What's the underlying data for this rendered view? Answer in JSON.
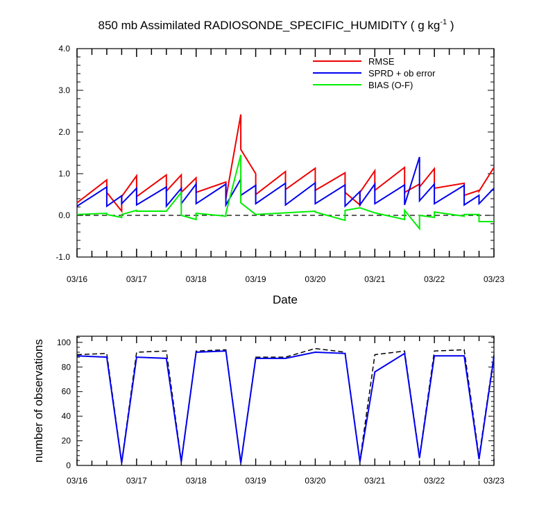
{
  "colors": {
    "rmse": "#ee0000",
    "spread": "#0000ee",
    "bias": "#00ee00",
    "obs_total": "#000000",
    "obs_assim": "#0000ee",
    "zero_line": "#000000"
  },
  "chart_data": [
    {
      "type": "line",
      "title": "850 mb Assimilated RADIOSONDE_SPECIFIC_HUMIDITY ( g kg",
      "title_unit_exp": "-1",
      "title_suffix": " )",
      "xlabel": "Date",
      "ylabel": "",
      "x_ticks": [
        "03/16",
        "03/17",
        "03/18",
        "03/19",
        "03/20",
        "03/21",
        "03/22",
        "03/23"
      ],
      "xlim": [
        0,
        7
      ],
      "ylim": [
        -1.0,
        4.0
      ],
      "y_ticks": [
        "-1.0",
        "0.0",
        "1.0",
        "2.0",
        "3.0",
        "4.0"
      ],
      "y_tick_values": [
        -1.0,
        0.0,
        1.0,
        2.0,
        3.0,
        4.0
      ],
      "legend": "top-right",
      "reference_line": 0.0,
      "series": [
        {
          "name": "RMSE",
          "x": [
            0.0,
            0.5,
            0.5,
            0.75,
            0.75,
            1.0,
            1.0,
            1.5,
            1.5,
            1.75,
            1.75,
            2.0,
            2.0,
            2.5,
            2.5,
            2.75,
            2.75,
            3.0,
            3.0,
            3.5,
            3.5,
            4.0,
            4.0,
            4.5,
            4.5,
            4.75,
            4.75,
            5.0,
            5.0,
            5.5,
            5.5,
            5.75,
            5.75,
            6.0,
            6.0,
            6.5,
            6.5,
            6.75,
            6.75,
            7.0
          ],
          "values": [
            0.3,
            0.85,
            0.55,
            0.1,
            0.45,
            0.95,
            0.45,
            0.97,
            0.58,
            0.97,
            0.55,
            0.9,
            0.55,
            0.8,
            0.4,
            2.42,
            1.58,
            1.0,
            0.5,
            1.05,
            0.62,
            1.13,
            0.6,
            1.02,
            0.55,
            0.25,
            0.55,
            1.07,
            0.6,
            1.15,
            0.55,
            0.75,
            0.68,
            1.12,
            0.65,
            0.77,
            0.48,
            0.6,
            0.58,
            1.15
          ]
        },
        {
          "name": "SPRD + ob error",
          "x": [
            0.0,
            0.5,
            0.5,
            0.75,
            0.75,
            1.0,
            1.0,
            1.5,
            1.5,
            1.75,
            1.75,
            2.0,
            2.0,
            2.5,
            2.5,
            2.75,
            2.75,
            3.0,
            3.0,
            3.5,
            3.5,
            4.0,
            4.0,
            4.5,
            4.5,
            4.75,
            4.75,
            5.0,
            5.0,
            5.5,
            5.5,
            5.75,
            5.75,
            6.0,
            6.0,
            6.5,
            6.5,
            6.75,
            6.75,
            7.0
          ],
          "values": [
            0.22,
            0.68,
            0.22,
            0.47,
            0.28,
            0.65,
            0.25,
            0.68,
            0.22,
            0.65,
            0.28,
            0.75,
            0.28,
            0.75,
            0.25,
            0.87,
            0.48,
            0.72,
            0.28,
            0.77,
            0.25,
            0.78,
            0.28,
            0.73,
            0.22,
            0.57,
            0.25,
            0.75,
            0.28,
            0.73,
            0.25,
            1.4,
            0.35,
            0.75,
            0.28,
            0.72,
            0.25,
            0.48,
            0.28,
            0.65
          ]
        },
        {
          "name": "BIAS (O-F)",
          "x": [
            0.0,
            0.5,
            0.5,
            0.75,
            0.75,
            1.0,
            1.0,
            1.5,
            1.5,
            1.75,
            1.75,
            2.0,
            2.0,
            2.5,
            2.5,
            2.75,
            2.75,
            3.0,
            3.0,
            3.5,
            3.5,
            4.0,
            4.0,
            4.5,
            4.5,
            4.75,
            4.75,
            5.0,
            5.0,
            5.5,
            5.5,
            5.75,
            5.75,
            6.0,
            6.0,
            6.5,
            6.5,
            6.75,
            6.75,
            7.0
          ],
          "values": [
            0.02,
            0.05,
            0.02,
            -0.05,
            0.02,
            0.12,
            0.1,
            0.1,
            0.1,
            0.55,
            0.0,
            -0.1,
            0.05,
            -0.02,
            0.05,
            1.45,
            0.3,
            0.02,
            0.02,
            0.06,
            0.06,
            0.1,
            0.08,
            -0.12,
            0.12,
            0.18,
            0.18,
            0.06,
            0.06,
            -0.1,
            0.12,
            -0.32,
            0.0,
            -0.05,
            0.08,
            -0.02,
            0.02,
            0.02,
            -0.15,
            -0.15
          ]
        }
      ]
    },
    {
      "type": "line",
      "title": "",
      "xlabel": "",
      "ylabel": "number of observations",
      "x_ticks": [
        "03/16",
        "03/17",
        "03/18",
        "03/19",
        "03/20",
        "03/21",
        "03/22",
        "03/23"
      ],
      "xlim": [
        0,
        7
      ],
      "ylim": [
        0,
        105
      ],
      "y_ticks": [
        "0",
        "20",
        "40",
        "60",
        "80",
        "100"
      ],
      "y_tick_values": [
        0,
        20,
        40,
        60,
        80,
        100
      ],
      "series": [
        {
          "style": "dashed",
          "x": [
            0.0,
            0.5,
            0.75,
            1.0,
            1.5,
            1.75,
            2.0,
            2.5,
            2.75,
            3.0,
            3.5,
            4.0,
            4.5,
            4.75,
            5.0,
            5.5,
            5.75,
            6.0,
            6.5,
            6.75,
            7.0
          ],
          "values": [
            90,
            91,
            3,
            92,
            93,
            4,
            93,
            94,
            3,
            88,
            88,
            95,
            92,
            4,
            90,
            93,
            7,
            93,
            94,
            7,
            90
          ]
        },
        {
          "style": "solid",
          "x": [
            0.0,
            0.5,
            0.75,
            1.0,
            1.5,
            1.75,
            2.0,
            2.5,
            2.75,
            3.0,
            3.5,
            4.0,
            4.5,
            4.75,
            5.0,
            5.5,
            5.75,
            6.0,
            6.5,
            6.75,
            7.0
          ],
          "values": [
            89,
            88,
            2,
            88,
            87,
            3,
            92,
            93,
            2,
            87,
            87,
            92,
            91,
            3,
            76,
            91,
            6,
            89,
            89,
            5,
            88
          ]
        }
      ]
    }
  ]
}
